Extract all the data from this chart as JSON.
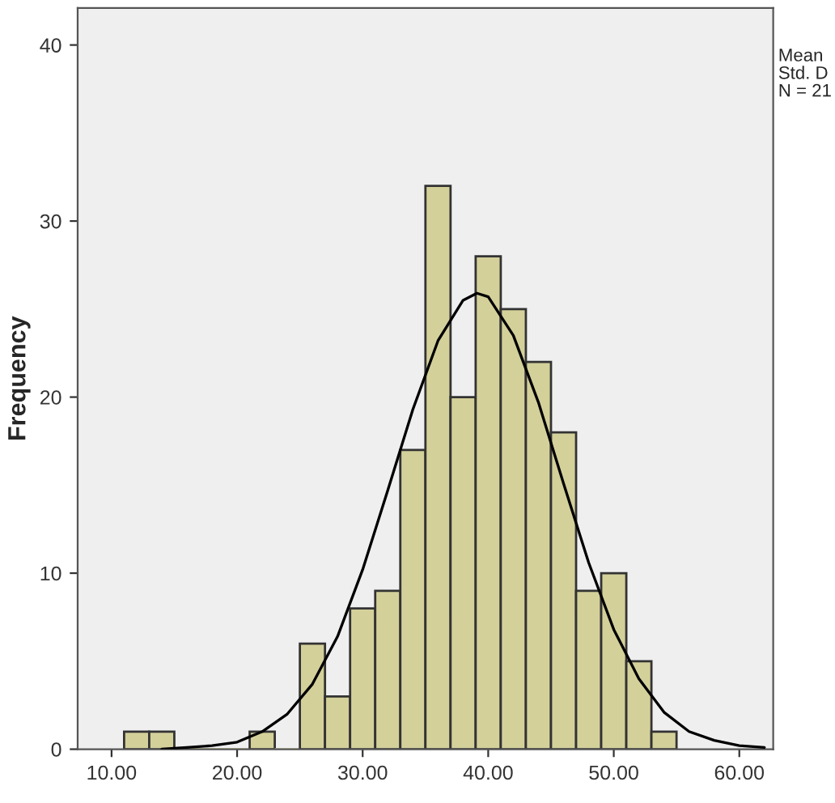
{
  "chart_data": {
    "type": "histogram",
    "ylabel": "Frequency",
    "bins": [
      11,
      13,
      15,
      17,
      19,
      21,
      23,
      25,
      27,
      29,
      31,
      33,
      35,
      37,
      39,
      41,
      43,
      45,
      47,
      49,
      51,
      53,
      55
    ],
    "values": [
      1,
      1,
      0,
      0,
      0,
      1,
      0,
      6,
      3,
      8,
      9,
      17,
      32,
      20,
      28,
      25,
      22,
      18,
      9,
      10,
      5,
      1
    ],
    "color": "#d4d09a",
    "series": [
      {
        "type": "line",
        "color": "#000000",
        "x": [
          14,
          16,
          18,
          20,
          22,
          24,
          26,
          28,
          30,
          32,
          34,
          36,
          38,
          39.1,
          40,
          42,
          44,
          46,
          48,
          50,
          52,
          54,
          56,
          58,
          60,
          62
        ],
        "values": [
          0.0,
          0.1,
          0.2,
          0.4,
          1.0,
          2.0,
          3.7,
          6.4,
          10.2,
          14.7,
          19.3,
          23.2,
          25.5,
          25.9,
          25.7,
          23.5,
          19.7,
          15.1,
          10.6,
          6.8,
          4.0,
          2.1,
          1.0,
          0.5,
          0.2,
          0.1
        ]
      }
    ],
    "xlim": [
      7.3,
      62.7
    ],
    "ylim": [
      0,
      42.1
    ],
    "xticks": [
      {
        "value": 10,
        "label": "10.00"
      },
      {
        "value": 20,
        "label": "20.00"
      },
      {
        "value": 30,
        "label": "30.00"
      },
      {
        "value": 40,
        "label": "40.00"
      },
      {
        "value": 50,
        "label": "50.00"
      },
      {
        "value": 60,
        "label": "60.00"
      }
    ],
    "yticks": [
      0,
      10,
      20,
      30,
      40
    ],
    "grid": false,
    "annotations": [
      "Mean",
      "Std. D",
      "N = 21"
    ]
  }
}
